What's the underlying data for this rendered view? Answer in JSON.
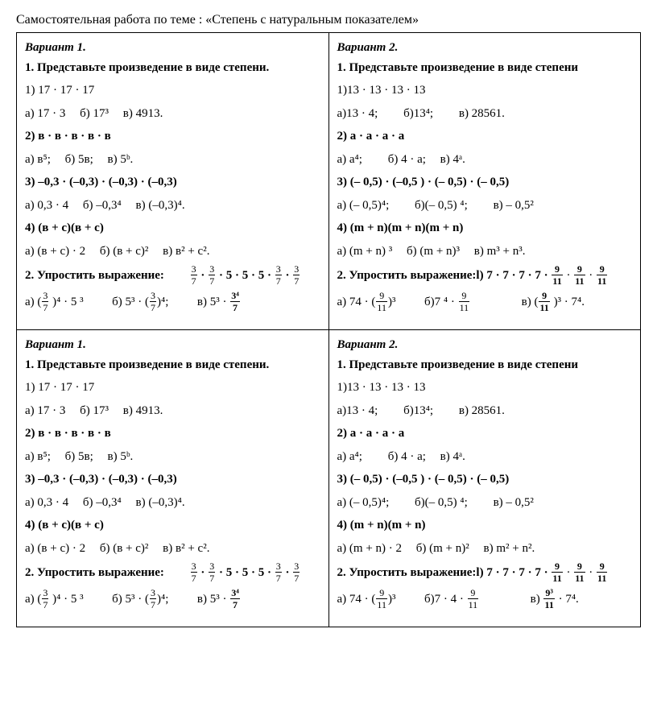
{
  "title": "Самостоятельная работа по теме : «Степень с натуральным показателем»",
  "v1": {
    "head": "Вариант 1.",
    "t1head": "1. Представьте произведение в виде степени.",
    "p1a": "1) 17 · 17 · 17",
    "p1b_a": "а) 17 · 3",
    "p1b_b": "б) 17³",
    "p1b_c": "в) 4913.",
    "p2": "2) в · в · в · в · в",
    "p2a": "а) в⁵;",
    "p2b": "б) 5в;",
    "p2c": "в) 5ᵇ.",
    "p3": "3) –0,3 · (–0,3) · (–0,3) · (–0,3)",
    "p3a": "а) 0,3 · 4",
    "p3b": "б) –0,3⁴",
    "p3c": "в) (–0,3)⁴.",
    "p4": "4) (в + с)(в + с)",
    "p4a": "а) (в + с) · 2",
    "p4b": "б) (в + с)²",
    "p4c": "в) в² + с².",
    "t2head": "2. Упростить выражение:",
    "ans_a": "а)",
    "ans_b": "б) 5³ · (",
    "ans_b2": ")⁴;",
    "ans_c": "в) 5³ · "
  },
  "v1b": {
    "p4a": "а) (в + с) · 2",
    "p4b": "б) (в + с)²",
    "p4c": "в) в² + с²."
  },
  "v2": {
    "head": "Вариант 2.",
    "t1head": "1. Представьте произведение в виде степени",
    "p1a": "1)13 · 13 · 13 · 13",
    "p1b_a": "а)13 · 4;",
    "p1b_b": "б)13⁴;",
    "p1b_c": "в) 28561.",
    "p2": "2) a · a · a · a",
    "p2a": "а)  a⁴;",
    "p2b": "б) 4 · a;",
    "p2c": "в)  4ᵃ.",
    "p3": "3) (– 0,5) · (–0,5 ) · (– 0,5) · (– 0,5)",
    "p3a": "а) (– 0,5)⁴;",
    "p3b": "б)(– 0,5) ⁴;",
    "p3c": "в) – 0,5²",
    "p4": "4) (m + n)(m + n)(m + n)",
    "p4a": "а) (m + n) ³",
    "p4b": "б) (m + n)³",
    "p4c": "в) m³ + n³.",
    "t2head": "2. Упростить выражение:l)  7 · 7 · 7 ·  7",
    "ans_a": "а)  74 · (",
    "ans_a2": ")³",
    "ans_b": "б)7 ⁴ · ",
    "ans_c": "в) (",
    "ans_c2": " )³ · 7⁴."
  },
  "v2b": {
    "p4": "4) (m + n)(m + n)",
    "p4a": "а) (m + n) · 2",
    "p4b": "б) (m + n)²",
    "p4c": "в) m² + n².",
    "ans_b": "б)7 · 4 · ",
    "ans_c": "в) ",
    "ans_c2": " · 7⁴."
  },
  "fractions": {
    "three_seven_num": "3",
    "three_seven_den": "7",
    "three_four_num": "3⁴",
    "three_four_den": "7",
    "nine_eleven_num": "9",
    "nine_eleven_den": "11",
    "nine3_eleven_num": "9³",
    "nine3_eleven_den": "11"
  },
  "labels": {
    "pow4_53": " )⁴ · 5 ³",
    "expr555": " · 5 · 5 · 5 · "
  }
}
